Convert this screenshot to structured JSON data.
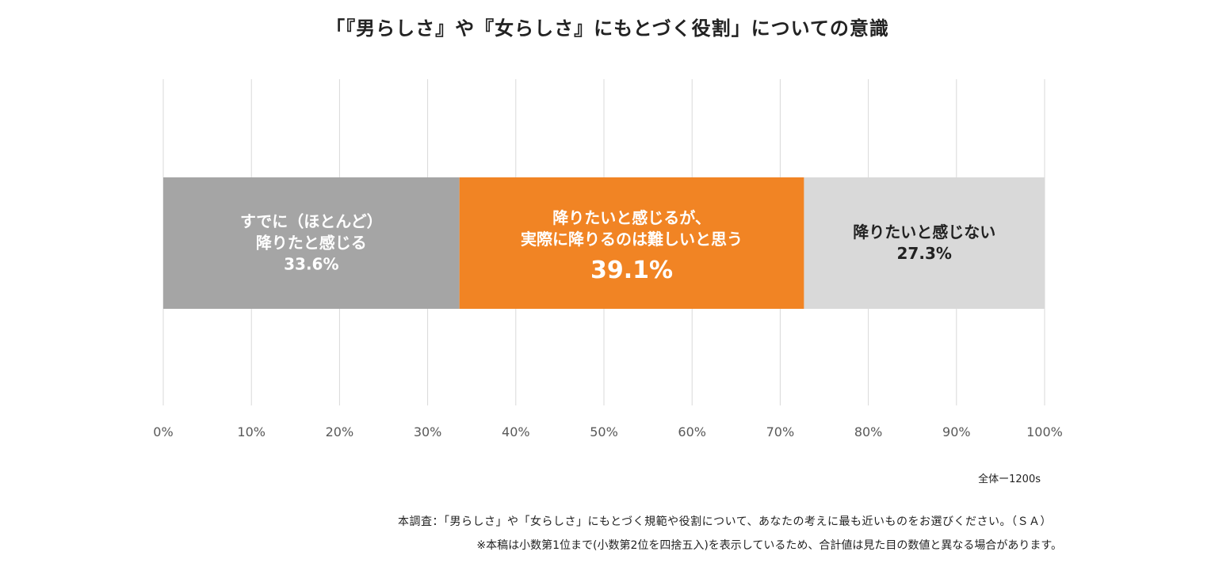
{
  "title": "「『男らしさ』や『女らしさ』にもとづく役割」についての意識",
  "colors": {
    "grid": "#d9d9d9",
    "axis_text": "#595959"
  },
  "chart_data": {
    "type": "bar",
    "orientation": "horizontal",
    "stacked": true,
    "title": "「『男らしさ』や『女らしさ』にもとづく役割」についての意識",
    "xlim": [
      0,
      100
    ],
    "x_ticks": [
      "0%",
      "10%",
      "20%",
      "30%",
      "40%",
      "50%",
      "60%",
      "70%",
      "80%",
      "90%",
      "100%"
    ],
    "grid": true,
    "legend": "none",
    "series": [
      {
        "label_lines": [
          "すでに（ほとんど）",
          "降りたと感じる"
        ],
        "value": 33.6,
        "value_label": "33.6%",
        "color": "#a5a5a5",
        "text_color": "#ffffff"
      },
      {
        "label_lines": [
          "降りたいと感じるが、",
          "実際に降りるのは難しいと思う"
        ],
        "value": 39.1,
        "value_label": "39.1%",
        "color": "#f18424",
        "text_color": "#ffffff"
      },
      {
        "label_lines": [
          "降りたいと感じない"
        ],
        "value": 27.3,
        "value_label": "27.3%",
        "color": "#d9d9d9",
        "text_color": "#222222"
      }
    ]
  },
  "sample_note": "全体ー1200s",
  "question_note": "本調査：「男らしさ」や「女らしさ」にもとづく規範や役割について、あなたの考えに最も近いものをお選びください。（ＳＡ）",
  "rounding_note": "※本稿は小数第1位まで(小数第2位を四捨五入)を表示しているため、合計値は見た目の数値と異なる場合があります。"
}
